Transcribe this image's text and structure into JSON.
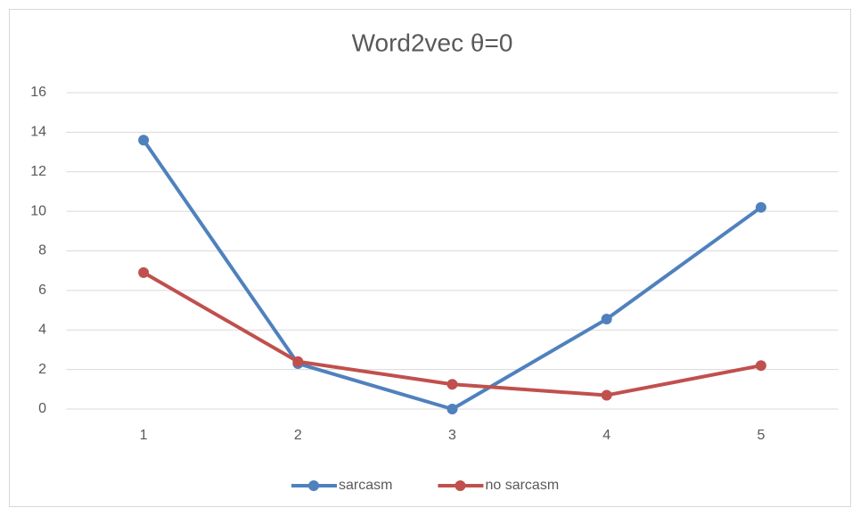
{
  "chart_data": {
    "type": "line",
    "title": "Word2vec    θ=0",
    "categories": [
      "1",
      "2",
      "3",
      "4",
      "5"
    ],
    "series": [
      {
        "name": "sarcasm",
        "color": "#4f81bd",
        "values": [
          13.6,
          2.3,
          0,
          4.55,
          10.2
        ]
      },
      {
        "name": "no sarcasm",
        "color": "#c0504d",
        "values": [
          6.9,
          2.4,
          1.25,
          0.7,
          2.2
        ]
      }
    ],
    "ylim": [
      0,
      16
    ],
    "yticks": [
      0,
      2,
      4,
      6,
      8,
      10,
      12,
      14,
      16
    ],
    "grid": true,
    "legend": "bottom"
  }
}
